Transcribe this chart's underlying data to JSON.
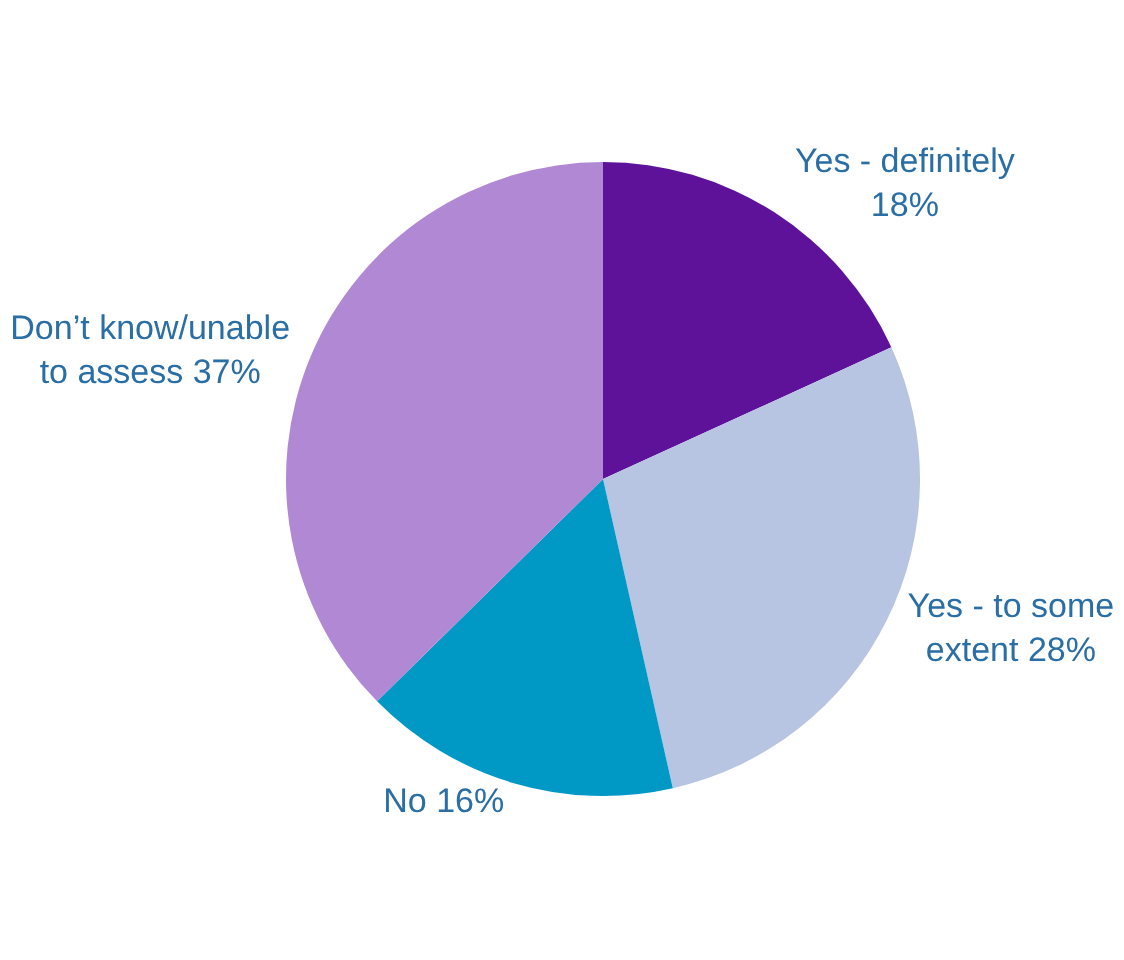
{
  "chart_data": {
    "type": "pie",
    "categories": [
      "Yes - definitely",
      "Yes - to some extent",
      "No",
      "Don’t know/unable to assess"
    ],
    "values": [
      18,
      28,
      16,
      37
    ],
    "value_labels": [
      "18%",
      "28%",
      "16%",
      "37%"
    ],
    "colors": [
      "#5e1199",
      "#b8c5e2",
      "#0099c6",
      "#b088d4"
    ],
    "legend": false
  }
}
